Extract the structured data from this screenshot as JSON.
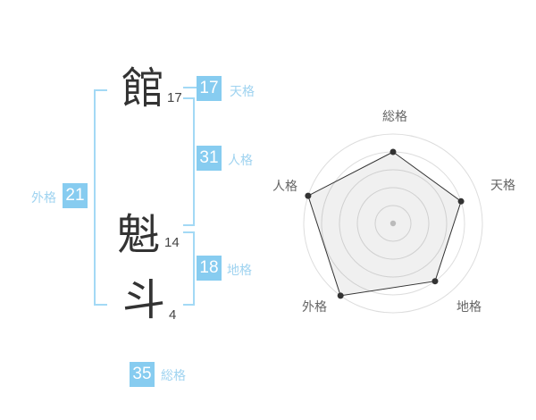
{
  "name_analysis": {
    "characters": [
      {
        "char": "館",
        "strokes": "17",
        "role": "surname"
      },
      {
        "char": "魁",
        "strokes": "14",
        "role": "given"
      },
      {
        "char": "斗",
        "strokes": "4",
        "role": "given"
      }
    ],
    "categories": {
      "tenkaku": {
        "value": "17",
        "label": "天格"
      },
      "jinkaku": {
        "value": "31",
        "label": "人格"
      },
      "chikaku": {
        "value": "18",
        "label": "地格"
      },
      "gaikaku": {
        "value": "21",
        "label": "外格"
      },
      "soukaku": {
        "value": "35",
        "label": "総格"
      }
    }
  },
  "colors": {
    "badge_blue": "#87ccf0",
    "label_blue": "#9fd3f0",
    "bracket_blue": "#a3d9f5",
    "kanji_text": "#333333",
    "stroke_count_text": "#444444",
    "radar_label_text": "#666666"
  },
  "chart_data": {
    "type": "radar",
    "axes": [
      "総格",
      "天格",
      "地格",
      "外格",
      "人格"
    ],
    "values": [
      80,
      80,
      80,
      100,
      100
    ],
    "max": 100,
    "ring_values": [
      20,
      40,
      60,
      80,
      100
    ],
    "start_axis": "top",
    "direction": "clockwise",
    "grid_shape": "concentric-circles",
    "legend": "none",
    "line_color": "#333333",
    "point_color": "#333333",
    "fill_color": "rgba(0,0,0,0.06)",
    "ring_color": "#dddddd",
    "center_dot_color": "#bbbbbb"
  }
}
